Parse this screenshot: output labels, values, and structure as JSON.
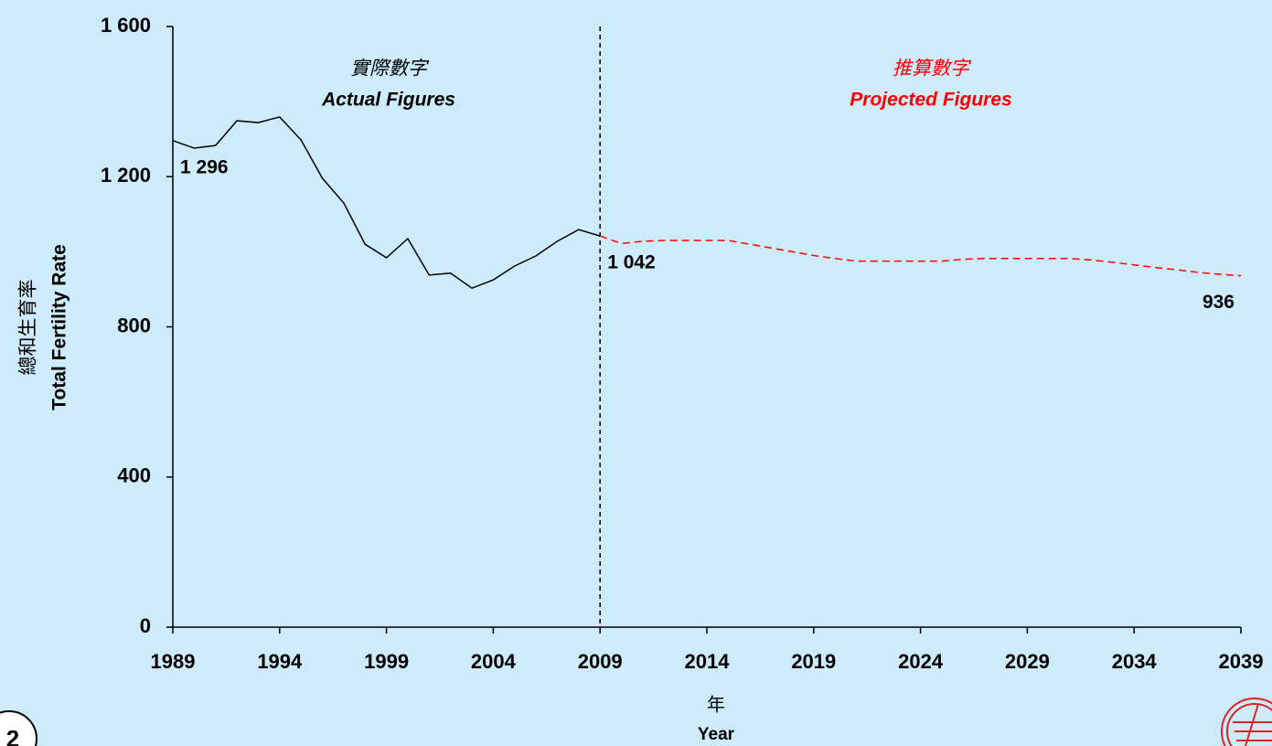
{
  "chart_data": {
    "type": "line",
    "annotations": [
      "實際數字",
      "Actual Figures",
      "推算數字",
      "Projected Figures"
    ],
    "y_label": [
      "總和生育率",
      "Total Fertility Rate"
    ],
    "x_label": [
      "年",
      "Year"
    ],
    "page_number": "2",
    "x": [
      1989,
      1990,
      1991,
      1992,
      1993,
      1994,
      1995,
      1996,
      1997,
      1998,
      1999,
      2000,
      2001,
      2002,
      2003,
      2004,
      2005,
      2006,
      2007,
      2008,
      2009,
      2010,
      2011,
      2012,
      2013,
      2014,
      2015,
      2016,
      2017,
      2018,
      2019,
      2020,
      2021,
      2022,
      2023,
      2024,
      2025,
      2026,
      2027,
      2028,
      2029,
      2030,
      2031,
      2032,
      2033,
      2034,
      2035,
      2036,
      2037,
      2038,
      2039
    ],
    "series": [
      {
        "name": "Actual Figures",
        "color": "#000000",
        "dashed": false,
        "values": [
          1296,
          1276,
          1283,
          1349,
          1344,
          1359,
          1298,
          1196,
          1130,
          1020,
          984,
          1035,
          938,
          943,
          903,
          925,
          962,
          989,
          1028,
          1059,
          1042,
          null,
          null,
          null,
          null,
          null,
          null,
          null,
          null,
          null,
          null,
          null,
          null,
          null,
          null,
          null,
          null,
          null,
          null,
          null,
          null,
          null,
          null,
          null,
          null,
          null,
          null,
          null,
          null,
          null,
          null
        ],
        "value_labels": [
          "1 296",
          null,
          null,
          null,
          null,
          null,
          null,
          null,
          null,
          null,
          null,
          null,
          null,
          null,
          null,
          null,
          null,
          null,
          null,
          null,
          "1 042",
          null,
          null,
          null,
          null,
          null,
          null,
          null,
          null,
          null,
          null,
          null,
          null,
          null,
          null,
          null,
          null,
          null,
          null,
          null,
          null,
          null,
          null,
          null,
          null,
          null,
          null,
          null,
          null,
          null,
          null
        ]
      },
      {
        "name": "Projected Figures",
        "color": "#ff0000",
        "dashed": true,
        "values": [
          null,
          null,
          null,
          null,
          null,
          null,
          null,
          null,
          null,
          null,
          null,
          null,
          null,
          null,
          null,
          null,
          null,
          null,
          null,
          null,
          1042,
          1022,
          1028,
          1030,
          1030,
          1030,
          1030,
          1020,
          1010,
          1000,
          990,
          982,
          975,
          975,
          975,
          975,
          975,
          980,
          982,
          982,
          982,
          982,
          982,
          978,
          972,
          965,
          958,
          952,
          945,
          940,
          936
        ],
        "value_labels": [
          null,
          null,
          null,
          null,
          null,
          null,
          null,
          null,
          null,
          null,
          null,
          null,
          null,
          null,
          null,
          null,
          null,
          null,
          null,
          null,
          null,
          null,
          null,
          null,
          null,
          null,
          null,
          null,
          null,
          null,
          null,
          null,
          null,
          null,
          null,
          null,
          null,
          null,
          null,
          null,
          null,
          null,
          null,
          null,
          null,
          null,
          null,
          null,
          null,
          null,
          "936"
        ]
      }
    ],
    "divider_x": 2009,
    "xlim": [
      1989,
      2039
    ],
    "xticks": [
      1989,
      1994,
      1999,
      2004,
      2009,
      2014,
      2019,
      2024,
      2029,
      2034,
      2039
    ],
    "ylim": [
      0,
      1600
    ],
    "yticks": [
      0,
      400,
      800,
      {
        "value": 1200,
        "label": "1 200"
      },
      {
        "value": 1600,
        "label": "1 600"
      }
    ],
    "grid": false
  }
}
